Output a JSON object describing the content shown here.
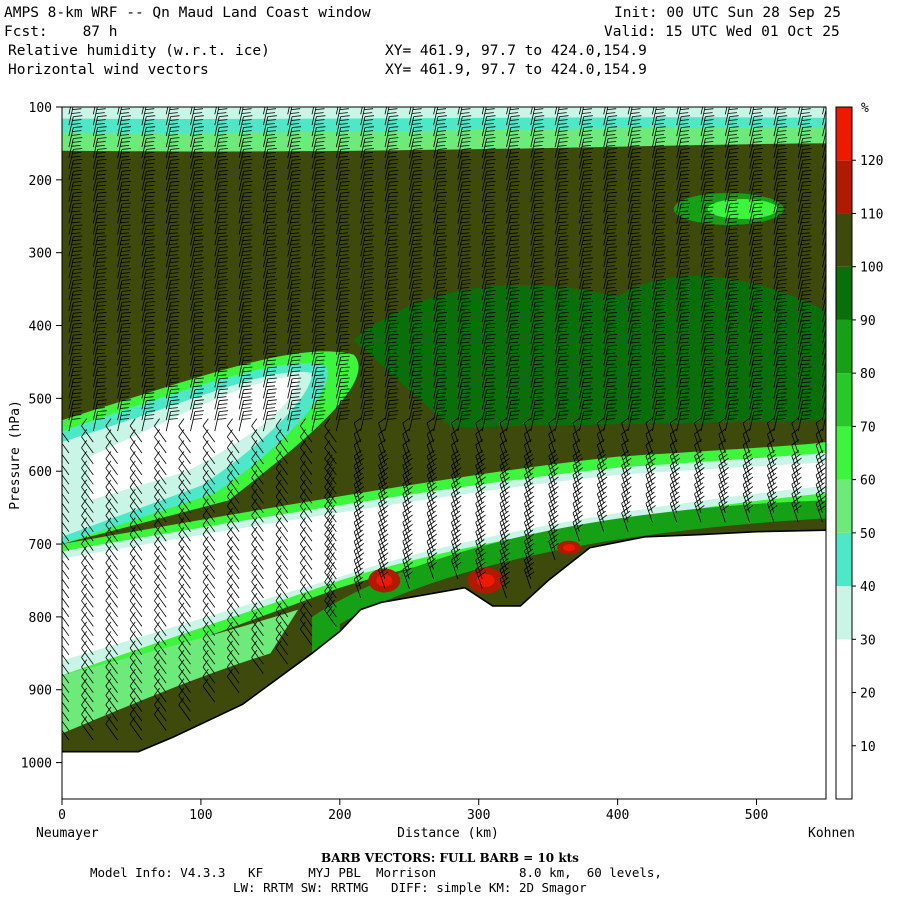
{
  "header": {
    "model_title": "AMPS 8-km WRF -- Qn Maud Land Coast window",
    "init": "Init: 00 UTC Sun 28 Sep 25",
    "forecast": "Fcst:    87 h",
    "valid": "Valid: 15 UTC Wed 01 Oct 25",
    "field1": "Relative humidity (w.r.t. ice)",
    "field2": "Horizontal wind vectors",
    "xy1": "XY= 461.9, 97.7 to 424.0,154.9",
    "xy2": "XY= 461.9, 97.7 to 424.0,154.9"
  },
  "footer": {
    "barb_title": "BARB VECTORS:  FULL BARB = 10 kts",
    "model_info_1": "Model Info: V4.3.3   KF      MYJ PBL  Morrison           8.0 km,  60 levels,",
    "model_info_2": "LW: RRTM SW: RRTMG   DIFF: simple KM: 2D Smagor"
  },
  "chart_data": {
    "type": "heatmap",
    "title": "Relative humidity (w.r.t. ice)",
    "xlabel": "Distance (km)",
    "ylabel": "Pressure (hPa)",
    "xlim": [
      0,
      550
    ],
    "ylim": [
      100,
      1050
    ],
    "y_scale": "pressure (inverted)",
    "x_ticks": [
      0,
      100,
      200,
      300,
      400,
      500
    ],
    "y_ticks": [
      100,
      200,
      300,
      400,
      500,
      600,
      700,
      800,
      900,
      1000
    ],
    "x_endpoints": {
      "left": "Neumayer",
      "right": "Kohnen"
    },
    "colorbar": {
      "unit": "%",
      "levels": [
        10,
        20,
        30,
        40,
        50,
        60,
        70,
        80,
        90,
        100,
        110,
        120
      ],
      "colors": [
        "#ffffff",
        "#ffffff",
        "#ffffff",
        "#c8f5e6",
        "#4ee8c8",
        "#6eea7a",
        "#3cf53c",
        "#28c828",
        "#16a016",
        "#0a6e0a",
        "#3e4a0c",
        "#b01a00",
        "#ee1a00"
      ]
    },
    "terrain_profile": {
      "x": [
        0,
        55,
        80,
        130,
        180,
        200,
        215,
        230,
        260,
        290,
        310,
        330,
        350,
        380,
        420,
        460,
        500,
        550
      ],
      "p": [
        985,
        985,
        965,
        920,
        850,
        820,
        790,
        780,
        770,
        760,
        785,
        785,
        750,
        705,
        690,
        687,
        683,
        681
      ]
    }
  }
}
